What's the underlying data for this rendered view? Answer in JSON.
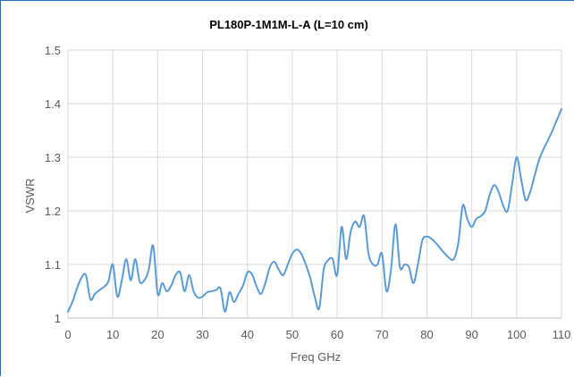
{
  "chart_data": {
    "type": "line",
    "title": "PL180P-1M1M-L-A (L=10 cm)",
    "xlabel": "Freq GHz",
    "ylabel": "VSWR",
    "xlim": [
      0,
      110
    ],
    "ylim": [
      1,
      1.5
    ],
    "x_ticks": [
      "0",
      "10",
      "20",
      "30",
      "40",
      "50",
      "60",
      "70",
      "80",
      "90",
      "100",
      "110"
    ],
    "y_ticks": [
      "1",
      "1.1",
      "1.2",
      "1.3",
      "1.4",
      "1.5"
    ],
    "grid": true,
    "legend": "none",
    "colors": {
      "line": "#5b9bd5"
    },
    "series": [
      {
        "x": [
          0,
          1,
          2,
          3,
          4,
          5,
          6,
          7,
          8,
          9,
          10,
          11,
          12,
          13,
          14,
          15,
          16,
          17,
          18,
          19,
          20,
          21,
          22,
          23,
          24,
          25,
          26,
          27,
          28,
          29,
          30,
          31,
          32,
          33,
          34,
          35,
          36,
          37,
          38,
          39,
          40,
          41,
          42,
          43,
          44,
          45,
          46,
          47,
          48,
          49,
          50,
          51,
          52,
          53,
          54,
          55,
          56,
          57,
          58,
          59,
          60,
          61,
          62,
          63,
          64,
          65,
          66,
          67,
          68,
          69,
          70,
          71,
          72,
          73,
          74,
          75,
          76,
          77,
          78,
          79,
          80,
          81,
          82,
          83,
          84,
          85,
          86,
          87,
          88,
          89,
          90,
          91,
          92,
          93,
          94,
          95,
          96,
          97,
          98,
          99,
          100,
          101,
          102,
          103,
          104,
          105,
          106,
          107,
          108,
          109,
          110
        ],
        "values": [
          1.012,
          1.03,
          1.055,
          1.075,
          1.08,
          1.035,
          1.045,
          1.052,
          1.058,
          1.068,
          1.1,
          1.04,
          1.07,
          1.11,
          1.07,
          1.11,
          1.068,
          1.07,
          1.09,
          1.135,
          1.045,
          1.065,
          1.05,
          1.06,
          1.08,
          1.085,
          1.05,
          1.08,
          1.05,
          1.038,
          1.04,
          1.048,
          1.05,
          1.052,
          1.055,
          1.012,
          1.048,
          1.03,
          1.045,
          1.06,
          1.085,
          1.082,
          1.06,
          1.045,
          1.065,
          1.095,
          1.105,
          1.09,
          1.08,
          1.1,
          1.12,
          1.128,
          1.12,
          1.1,
          1.075,
          1.04,
          1.018,
          1.09,
          1.108,
          1.11,
          1.08,
          1.17,
          1.11,
          1.16,
          1.18,
          1.17,
          1.19,
          1.12,
          1.1,
          1.1,
          1.12,
          1.05,
          1.09,
          1.175,
          1.095,
          1.1,
          1.095,
          1.065,
          1.1,
          1.145,
          1.152,
          1.148,
          1.14,
          1.13,
          1.12,
          1.112,
          1.11,
          1.14,
          1.21,
          1.185,
          1.17,
          1.185,
          1.19,
          1.2,
          1.23,
          1.248,
          1.235,
          1.21,
          1.2,
          1.25,
          1.3,
          1.26,
          1.22,
          1.235,
          1.265,
          1.295,
          1.315,
          1.332,
          1.35,
          1.37,
          1.39
        ]
      }
    ]
  }
}
